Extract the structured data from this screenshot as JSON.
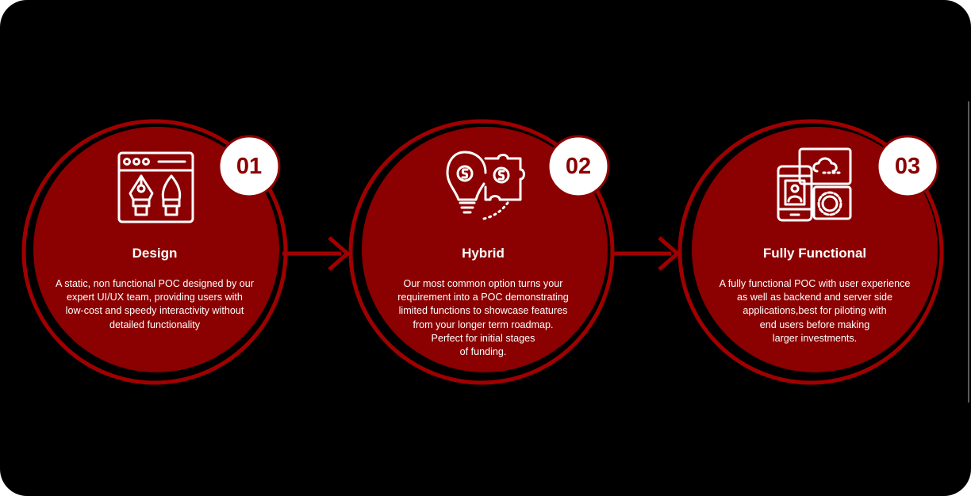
{
  "colors": {
    "background": "#000000",
    "circle_fill": "#8b0000",
    "ring": "#a00000",
    "badge_fill": "#ffffff",
    "badge_text": "#8b0000",
    "text": "#ffffff"
  },
  "steps": [
    {
      "number": "01",
      "title": "Design",
      "icon": "design-pen-tools-icon",
      "description": "A static, non functional POC designed by our\nexpert UI/UX team, providing users with\nlow-cost and speedy interactivity without\ndetailed functionality"
    },
    {
      "number": "02",
      "title": "Hybrid",
      "icon": "bulb-puzzle-money-icon",
      "description": "Our most common option turns your\nrequirement into a POC demonstrating\nlimited functions to showcase features\nfrom your longer term roadmap.\nPerfect for initial stages\nof  funding."
    },
    {
      "number": "03",
      "title": "Fully Functional",
      "icon": "mobile-cloud-gear-icon",
      "description": "A fully functional POC with user experience\nas well as backend and server side\napplications,best for piloting with\nend users before making\nlarger investments."
    }
  ]
}
